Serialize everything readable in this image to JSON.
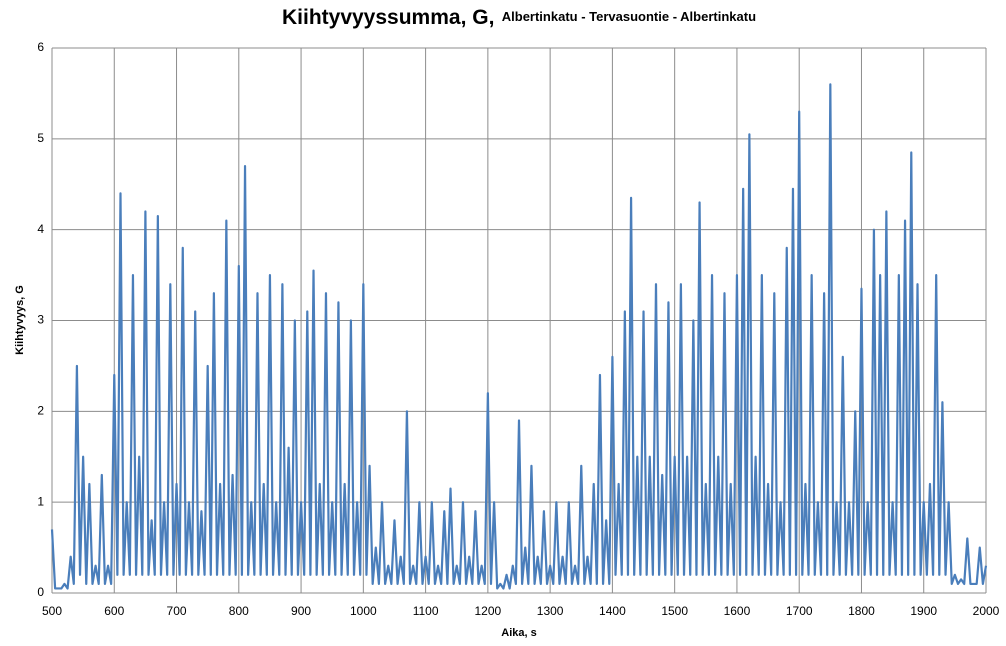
{
  "chart_data": {
    "type": "line",
    "title": "Kiihtyvyyssumma, G,",
    "subtitle": "Albertinkatu - Tervasuontie - Albertinkatu",
    "x_label": "Aika, s",
    "y_label": "Kiihtyvyys, G",
    "color": "#4a7ebb",
    "grid": true,
    "xlim": [
      500,
      2000
    ],
    "ylim": [
      0,
      6
    ],
    "xticks": [
      500,
      600,
      700,
      800,
      900,
      1000,
      1100,
      1200,
      1300,
      1400,
      1500,
      1600,
      1700,
      1800,
      1900,
      2000
    ],
    "yticks": [
      0,
      1,
      2,
      3,
      4,
      5,
      6
    ],
    "x": [
      500,
      505,
      510,
      515,
      520,
      525,
      530,
      535,
      540,
      545,
      550,
      555,
      560,
      565,
      570,
      575,
      580,
      585,
      590,
      595,
      600,
      605,
      610,
      615,
      620,
      625,
      630,
      635,
      640,
      645,
      650,
      655,
      660,
      665,
      670,
      675,
      680,
      685,
      690,
      695,
      700,
      705,
      710,
      715,
      720,
      725,
      730,
      735,
      740,
      745,
      750,
      755,
      760,
      765,
      770,
      775,
      780,
      785,
      790,
      795,
      800,
      805,
      810,
      815,
      820,
      825,
      830,
      835,
      840,
      845,
      850,
      855,
      860,
      865,
      870,
      875,
      880,
      885,
      890,
      895,
      900,
      905,
      910,
      915,
      920,
      925,
      930,
      935,
      940,
      945,
      950,
      955,
      960,
      965,
      970,
      975,
      980,
      985,
      990,
      995,
      1000,
      1005,
      1010,
      1015,
      1020,
      1025,
      1030,
      1035,
      1040,
      1045,
      1050,
      1055,
      1060,
      1065,
      1070,
      1075,
      1080,
      1085,
      1090,
      1095,
      1100,
      1105,
      1110,
      1115,
      1120,
      1125,
      1130,
      1135,
      1140,
      1145,
      1150,
      1155,
      1160,
      1165,
      1170,
      1175,
      1180,
      1185,
      1190,
      1195,
      1200,
      1205,
      1210,
      1215,
      1220,
      1225,
      1230,
      1235,
      1240,
      1245,
      1250,
      1255,
      1260,
      1265,
      1270,
      1275,
      1280,
      1285,
      1290,
      1295,
      1300,
      1305,
      1310,
      1315,
      1320,
      1325,
      1330,
      1335,
      1340,
      1345,
      1350,
      1355,
      1360,
      1365,
      1370,
      1375,
      1380,
      1385,
      1390,
      1395,
      1400,
      1405,
      1410,
      1415,
      1420,
      1425,
      1430,
      1435,
      1440,
      1445,
      1450,
      1455,
      1460,
      1465,
      1470,
      1475,
      1480,
      1485,
      1490,
      1495,
      1500,
      1505,
      1510,
      1515,
      1520,
      1525,
      1530,
      1535,
      1540,
      1545,
      1550,
      1555,
      1560,
      1565,
      1570,
      1575,
      1580,
      1585,
      1590,
      1595,
      1600,
      1605,
      1610,
      1615,
      1620,
      1625,
      1630,
      1635,
      1640,
      1645,
      1650,
      1655,
      1660,
      1665,
      1670,
      1675,
      1680,
      1685,
      1690,
      1695,
      1700,
      1705,
      1710,
      1715,
      1720,
      1725,
      1730,
      1735,
      1740,
      1745,
      1750,
      1755,
      1760,
      1765,
      1770,
      1775,
      1780,
      1785,
      1790,
      1795,
      1800,
      1805,
      1810,
      1815,
      1820,
      1825,
      1830,
      1835,
      1840,
      1845,
      1850,
      1855,
      1860,
      1865,
      1870,
      1875,
      1880,
      1885,
      1890,
      1895,
      1900,
      1905,
      1910,
      1915,
      1920,
      1925,
      1930,
      1935,
      1940,
      1945,
      1950,
      1955,
      1960,
      1965,
      1970,
      1975,
      1980,
      1985,
      1990,
      1995,
      2000
    ],
    "values": [
      0.7,
      0.05,
      0.05,
      0.05,
      0.1,
      0.05,
      0.4,
      0.1,
      2.5,
      0.2,
      1.5,
      0.1,
      1.2,
      0.1,
      0.3,
      0.1,
      1.3,
      0.1,
      0.3,
      0.1,
      2.4,
      0.2,
      4.4,
      0.2,
      1.0,
      0.2,
      3.5,
      0.2,
      1.5,
      0.2,
      4.2,
      0.2,
      0.8,
      0.2,
      4.15,
      0.2,
      1.0,
      0.2,
      3.4,
      0.2,
      1.2,
      0.2,
      3.8,
      0.2,
      1.0,
      0.2,
      3.1,
      0.2,
      0.9,
      0.2,
      2.5,
      0.2,
      3.3,
      0.2,
      1.2,
      0.2,
      4.1,
      0.2,
      1.3,
      0.2,
      3.6,
      0.2,
      4.7,
      0.2,
      1.0,
      0.2,
      3.3,
      0.2,
      1.2,
      0.2,
      3.5,
      0.2,
      1.0,
      0.2,
      3.4,
      0.2,
      1.6,
      0.2,
      3.0,
      0.2,
      1.0,
      0.2,
      3.1,
      0.2,
      3.55,
      0.2,
      1.2,
      0.2,
      3.3,
      0.2,
      1.0,
      0.2,
      3.2,
      0.2,
      1.2,
      0.2,
      3.0,
      0.2,
      1.0,
      0.2,
      3.4,
      0.2,
      1.4,
      0.1,
      0.5,
      0.1,
      1.0,
      0.1,
      0.3,
      0.1,
      0.8,
      0.1,
      0.4,
      0.1,
      2.0,
      0.1,
      0.3,
      0.1,
      1.0,
      0.1,
      0.4,
      0.1,
      1.0,
      0.1,
      0.3,
      0.1,
      0.9,
      0.1,
      1.15,
      0.1,
      0.3,
      0.1,
      1.0,
      0.1,
      0.4,
      0.1,
      0.9,
      0.1,
      0.3,
      0.1,
      2.2,
      0.1,
      1.0,
      0.05,
      0.1,
      0.05,
      0.2,
      0.05,
      0.3,
      0.1,
      1.9,
      0.1,
      0.5,
      0.1,
      1.4,
      0.1,
      0.4,
      0.1,
      0.9,
      0.1,
      0.3,
      0.1,
      1.0,
      0.1,
      0.4,
      0.1,
      1.0,
      0.1,
      0.3,
      0.1,
      1.4,
      0.1,
      0.4,
      0.1,
      1.2,
      0.1,
      2.4,
      0.1,
      0.8,
      0.1,
      2.6,
      0.2,
      1.2,
      0.2,
      3.1,
      0.2,
      4.35,
      0.2,
      1.5,
      0.2,
      3.1,
      0.2,
      1.5,
      0.2,
      3.4,
      0.2,
      1.3,
      0.2,
      3.2,
      0.2,
      1.5,
      0.2,
      3.4,
      0.2,
      1.5,
      0.2,
      3.0,
      0.2,
      4.3,
      0.2,
      1.2,
      0.2,
      3.5,
      0.2,
      1.5,
      0.2,
      3.3,
      0.2,
      1.2,
      0.2,
      3.5,
      0.2,
      4.45,
      0.2,
      5.05,
      0.2,
      1.5,
      0.2,
      3.5,
      0.2,
      1.2,
      0.2,
      3.3,
      0.2,
      1.0,
      0.2,
      3.8,
      0.2,
      4.45,
      0.2,
      5.3,
      0.2,
      1.2,
      0.2,
      3.5,
      0.2,
      1.0,
      0.2,
      3.3,
      0.2,
      5.6,
      0.2,
      1.0,
      0.2,
      2.6,
      0.2,
      1.0,
      0.2,
      2.0,
      0.2,
      3.35,
      0.2,
      1.0,
      0.2,
      4.0,
      0.2,
      3.5,
      0.2,
      4.2,
      0.2,
      1.0,
      0.2,
      3.5,
      0.2,
      4.1,
      0.2,
      4.85,
      0.2,
      3.4,
      0.2,
      1.0,
      0.2,
      1.2,
      0.2,
      3.5,
      0.2,
      2.1,
      0.2,
      1.0,
      0.1,
      0.2,
      0.1,
      0.15,
      0.1,
      0.6,
      0.1,
      0.1,
      0.1,
      0.5,
      0.1,
      0.3
    ]
  }
}
